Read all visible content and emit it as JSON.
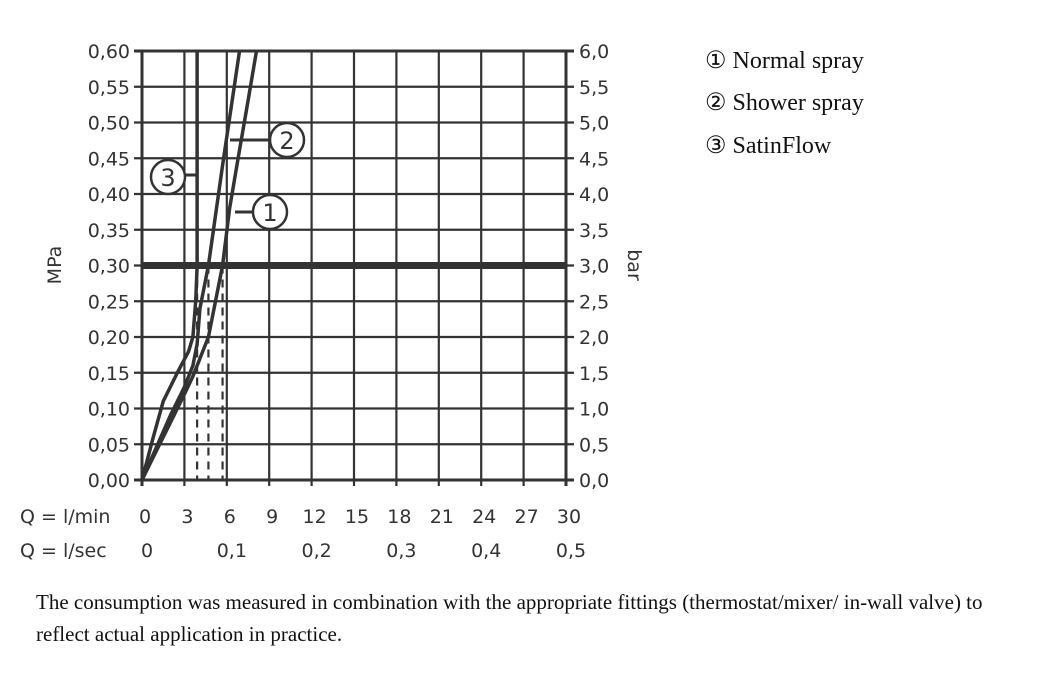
{
  "chart_data": {
    "type": "line",
    "title": "",
    "ylabel_left": "MPa",
    "ylabel_right": "bar",
    "xlabel_rows": [
      {
        "label": "Q = l/min",
        "ticks": [
          "0",
          "3",
          "6",
          "9",
          "12",
          "15",
          "18",
          "21",
          "24",
          "27",
          "30"
        ],
        "values": [
          0,
          3,
          6,
          9,
          12,
          15,
          18,
          21,
          24,
          27,
          30
        ]
      },
      {
        "label": "Q = l/sec",
        "ticks": [
          "0",
          "0,1",
          "0,2",
          "0,3",
          "0,4",
          "0,5"
        ],
        "values": [
          0,
          6,
          12,
          18,
          24,
          30
        ]
      }
    ],
    "xlim": [
      0,
      30
    ],
    "ylim": [
      0,
      0.6
    ],
    "y_ticks_left": [
      "0,00",
      "0,05",
      "0,10",
      "0,15",
      "0,20",
      "0,25",
      "0,30",
      "0,35",
      "0,40",
      "0,45",
      "0,50",
      "0,55",
      "0,60"
    ],
    "y_ticks_right": [
      "0,0",
      "0,5",
      "1,0",
      "1,5",
      "2,0",
      "2,5",
      "3,0",
      "3,5",
      "4,0",
      "4,5",
      "5,0",
      "5,5",
      "6,0"
    ],
    "grid": true,
    "reference_line_mpa": 0.3,
    "dashed_drops_lmin": [
      3.9,
      4.7,
      5.7
    ],
    "series": [
      {
        "name": "Normal spray",
        "marker": "1",
        "points": [
          [
            0,
            0
          ],
          [
            1,
            0.04
          ],
          [
            2,
            0.08
          ],
          [
            3,
            0.12
          ],
          [
            3.6,
            0.145
          ],
          [
            4.2,
            0.175
          ],
          [
            4.7,
            0.2
          ],
          [
            5.2,
            0.25
          ],
          [
            5.7,
            0.3
          ],
          [
            6.2,
            0.38
          ],
          [
            6.8,
            0.45
          ],
          [
            7.5,
            0.53
          ],
          [
            8.1,
            0.6
          ]
        ]
      },
      {
        "name": "Shower spray",
        "marker": "2",
        "points": [
          [
            0,
            0
          ],
          [
            1,
            0.045
          ],
          [
            2,
            0.09
          ],
          [
            3,
            0.13
          ],
          [
            3.6,
            0.16
          ],
          [
            3.9,
            0.19
          ],
          [
            4.1,
            0.24
          ],
          [
            4.7,
            0.3
          ],
          [
            5.2,
            0.37
          ],
          [
            5.7,
            0.44
          ],
          [
            6.3,
            0.52
          ],
          [
            6.9,
            0.6
          ]
        ]
      },
      {
        "name": "SatinFlow",
        "marker": "3",
        "points": [
          [
            0,
            0
          ],
          [
            0.8,
            0.06
          ],
          [
            1.5,
            0.11
          ],
          [
            2.5,
            0.15
          ],
          [
            3.3,
            0.18
          ],
          [
            3.6,
            0.2
          ],
          [
            3.8,
            0.25
          ],
          [
            3.9,
            0.3
          ],
          [
            3.9,
            0.6
          ]
        ]
      }
    ],
    "legend_placement": "right"
  },
  "legend": [
    {
      "symbol": "①",
      "label": "Normal spray"
    },
    {
      "symbol": "②",
      "label": "Shower spray"
    },
    {
      "symbol": "③",
      "label": "SatinFlow"
    }
  ],
  "note": "The consumption was measured in combination with the appropriate fittings (thermostat/mixer/ in-wall valve) to reflect actual application in practice.",
  "colors": {
    "line": "#333333"
  }
}
